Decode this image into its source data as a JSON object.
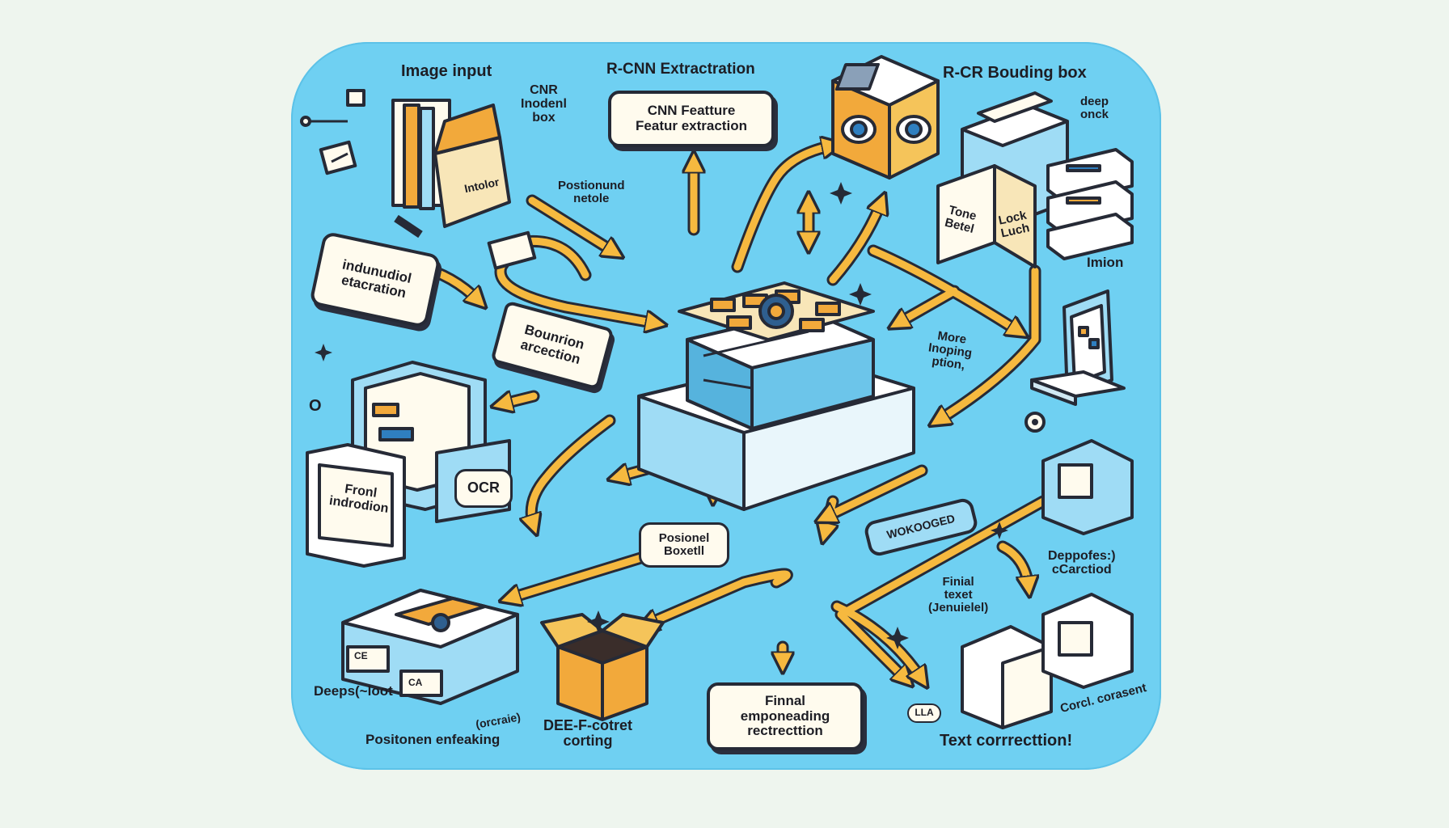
{
  "labels": {
    "image_input": "Image input",
    "rcnn_extraction": "R-CNN Extractration",
    "rcr_bounding_box": "R-CR Bouding box",
    "cnr_inodenl_box": "CNR\nInodenl\nbox",
    "cnn_feature_box": "CNN Featture\nFeatur extraction",
    "interior_tag": "Intolor",
    "position_node": "Postionund\nnetole",
    "deep_onck": "deep\nonck",
    "tone_betel": "Tone\nBetel",
    "lock_luch": "Lock\nLuch",
    "individual_extraction": "indunudiol\netacration",
    "boundary_detection": "Bounrion\narcection",
    "imion": "Imion",
    "more_inoping": "More\nInoping\nption,",
    "ocr": "OCR",
    "front_indrodion": "Fronl\nindrodion",
    "positional_boxell": "Posionel\nBoxetll",
    "wokooded": "WOKOOGED",
    "deepofes_correction": "Deppofes:)\ncCarctiod",
    "final_text": "Finial\ntexet\n(Jenuielel)",
    "deep_loot": "Deeps(~loot",
    "positoned_enfeaking": "Positonen enfeaking",
    "contained": "(orcraie)",
    "dee_cortet": "DEE-F-cotret\ncorting",
    "final_emponeading": "Finnal\nemponeading\nrectrecttion",
    "lla": "LLA",
    "text_corrention": "Text corrrecttion!",
    "conrusent": "Corcl. corasent",
    "letter_o": "O",
    "ocr_chip_a": "CE",
    "ocr_chip_b": "CA"
  },
  "colors": {
    "panel": "#6fd0f2",
    "arrow": "#f6b93f",
    "outline": "#262a36",
    "card": "#fffbee",
    "blue_device": "#9fdcf5",
    "orange_accent": "#f2a93b"
  },
  "icons": [
    "document-stack-icon",
    "open-box-icon",
    "eyes-cube-icon",
    "printer-icon",
    "server-stack-icon",
    "laptop-icon",
    "monitor-icon",
    "processor-chip-icon",
    "cardboard-box-icon",
    "cube-icon",
    "gear-icon",
    "sparkle-icon"
  ]
}
